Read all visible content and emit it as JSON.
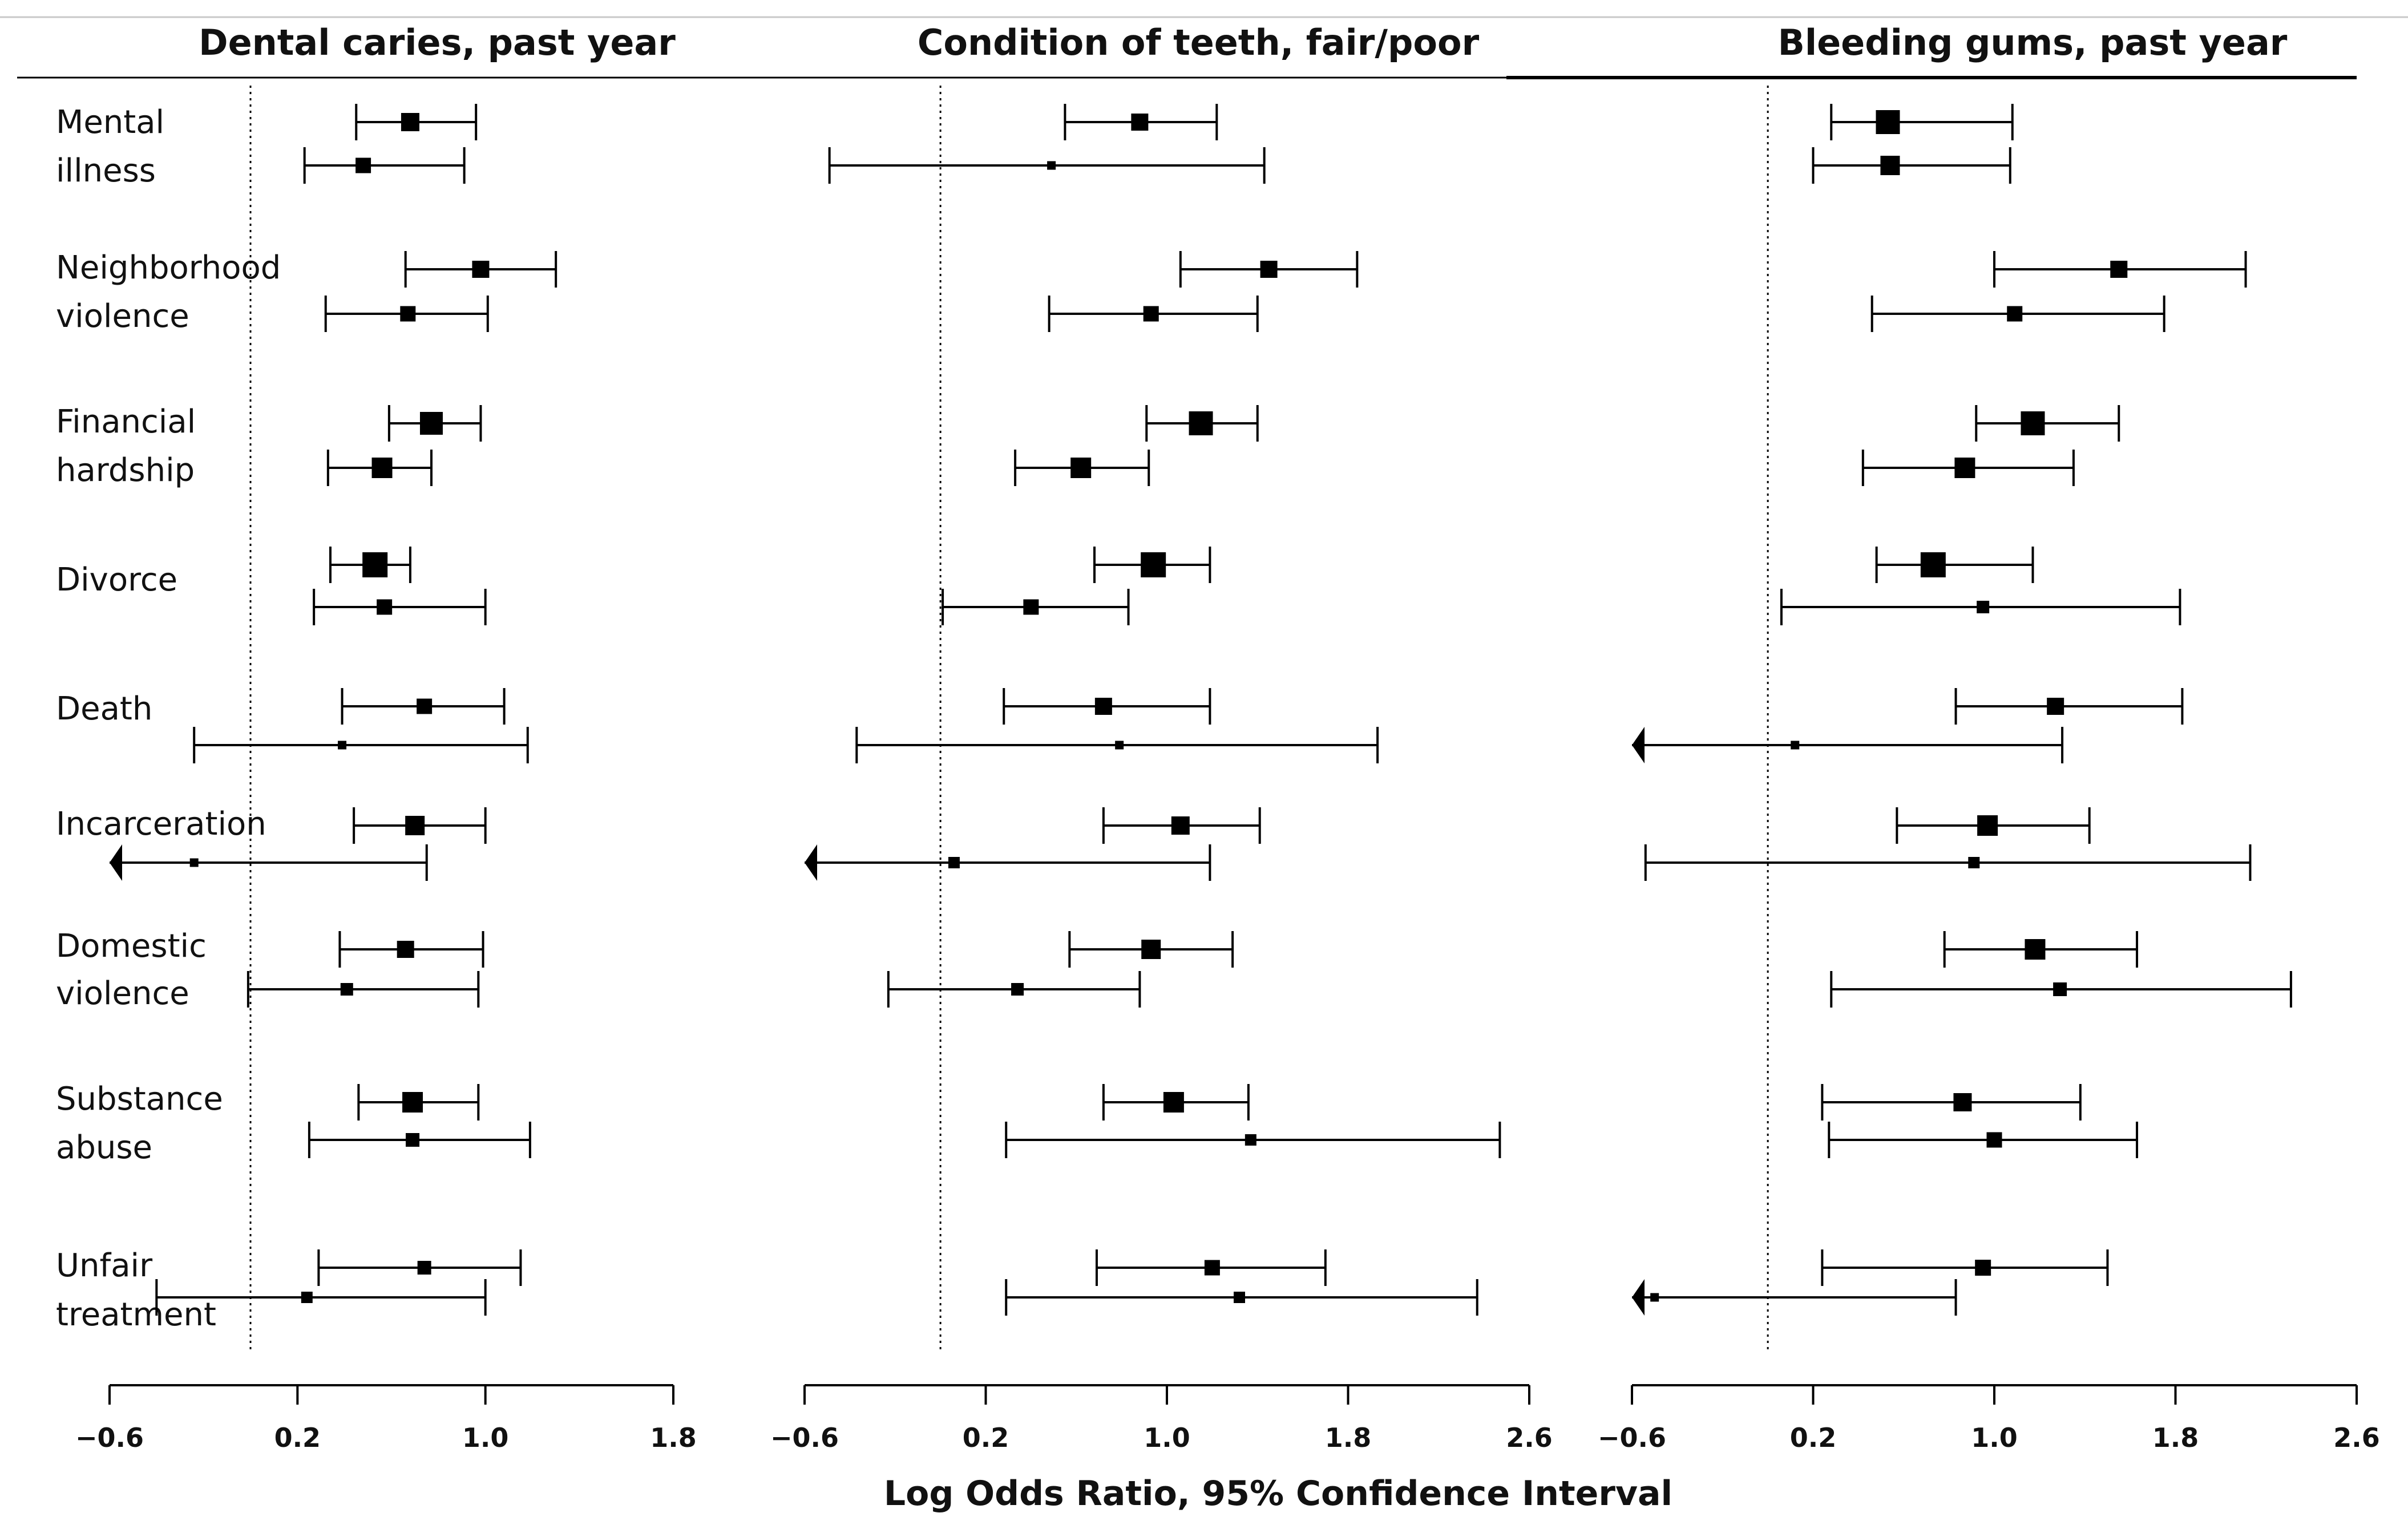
{
  "chart_data": {
    "type": "forest",
    "xlabel": "Log Odds Ratio, 95% Confidence Interval",
    "reference_line": 0,
    "rows": [
      {
        "label_lines": [
          "Mental",
          "illness"
        ]
      },
      {
        "label_lines": [
          "Neighborhood",
          "violence"
        ]
      },
      {
        "label_lines": [
          "Financial",
          "hardship"
        ]
      },
      {
        "label_lines": [
          "Divorce"
        ]
      },
      {
        "label_lines": [
          "Death"
        ]
      },
      {
        "label_lines": [
          "Incarceration"
        ]
      },
      {
        "label_lines": [
          "Domestic",
          "violence"
        ]
      },
      {
        "label_lines": [
          "Substance",
          "abuse"
        ]
      },
      {
        "label_lines": [
          "Unfair",
          "treatment"
        ]
      }
    ],
    "panels": [
      {
        "title": "Dental caries, past year",
        "xlim": [
          -0.6,
          1.8
        ],
        "ticks": [
          -0.6,
          0.2,
          1.0,
          1.8
        ],
        "tick_labels": [
          "−0.6",
          "0.2",
          "1.0",
          "1.8"
        ],
        "estimates": [
          {
            "row": 0,
            "sub": 0,
            "est": 0.68,
            "lo": 0.45,
            "hi": 0.96,
            "size": 32
          },
          {
            "row": 0,
            "sub": 1,
            "est": 0.48,
            "lo": 0.23,
            "hi": 0.91,
            "size": 27
          },
          {
            "row": 1,
            "sub": 0,
            "est": 0.98,
            "lo": 0.66,
            "hi": 1.3,
            "size": 30
          },
          {
            "row": 1,
            "sub": 1,
            "est": 0.67,
            "lo": 0.32,
            "hi": 1.01,
            "size": 27
          },
          {
            "row": 2,
            "sub": 0,
            "est": 0.77,
            "lo": 0.59,
            "hi": 0.98,
            "size": 40
          },
          {
            "row": 2,
            "sub": 1,
            "est": 0.56,
            "lo": 0.33,
            "hi": 0.77,
            "size": 36
          },
          {
            "row": 3,
            "sub": 0,
            "est": 0.53,
            "lo": 0.34,
            "hi": 0.68,
            "size": 44
          },
          {
            "row": 3,
            "sub": 1,
            "est": 0.57,
            "lo": 0.27,
            "hi": 1.0,
            "size": 27
          },
          {
            "row": 4,
            "sub": 0,
            "est": 0.74,
            "lo": 0.39,
            "hi": 1.08,
            "size": 27
          },
          {
            "row": 4,
            "sub": 1,
            "est": 0.39,
            "lo": -0.24,
            "hi": 1.18,
            "size": 15
          },
          {
            "row": 5,
            "sub": 0,
            "est": 0.7,
            "lo": 0.44,
            "hi": 1.0,
            "size": 34
          },
          {
            "row": 5,
            "sub": 1,
            "est": -0.24,
            "lo": -0.6,
            "hi": 0.75,
            "size": 15,
            "lo_arrow": true
          },
          {
            "row": 6,
            "sub": 0,
            "est": 0.66,
            "lo": 0.38,
            "hi": 0.99,
            "size": 30
          },
          {
            "row": 6,
            "sub": 1,
            "est": 0.41,
            "lo": -0.01,
            "hi": 0.97,
            "size": 22
          },
          {
            "row": 7,
            "sub": 0,
            "est": 0.69,
            "lo": 0.46,
            "hi": 0.97,
            "size": 36
          },
          {
            "row": 7,
            "sub": 1,
            "est": 0.69,
            "lo": 0.25,
            "hi": 1.19,
            "size": 24
          },
          {
            "row": 8,
            "sub": 0,
            "est": 0.74,
            "lo": 0.29,
            "hi": 1.15,
            "size": 24
          },
          {
            "row": 8,
            "sub": 1,
            "est": 0.24,
            "lo": -0.4,
            "hi": 1.0,
            "size": 20
          }
        ]
      },
      {
        "title": "Condition of teeth, fair/poor",
        "xlim": [
          -0.6,
          2.6
        ],
        "ticks": [
          -0.6,
          0.2,
          1.0,
          1.8,
          2.6
        ],
        "tick_labels": [
          "−0.6",
          "0.2",
          "1.0",
          "1.8",
          "2.6"
        ],
        "estimates": [
          {
            "row": 0,
            "sub": 0,
            "est": 0.88,
            "lo": 0.55,
            "hi": 1.22,
            "size": 30
          },
          {
            "row": 0,
            "sub": 1,
            "est": 0.49,
            "lo": -0.49,
            "hi": 1.43,
            "size": 15
          },
          {
            "row": 1,
            "sub": 0,
            "est": 1.45,
            "lo": 1.06,
            "hi": 1.84,
            "size": 30
          },
          {
            "row": 1,
            "sub": 1,
            "est": 0.93,
            "lo": 0.48,
            "hi": 1.4,
            "size": 27
          },
          {
            "row": 2,
            "sub": 0,
            "est": 1.15,
            "lo": 0.91,
            "hi": 1.4,
            "size": 42
          },
          {
            "row": 2,
            "sub": 1,
            "est": 0.62,
            "lo": 0.33,
            "hi": 0.92,
            "size": 36
          },
          {
            "row": 3,
            "sub": 0,
            "est": 0.94,
            "lo": 0.68,
            "hi": 1.19,
            "size": 44
          },
          {
            "row": 3,
            "sub": 1,
            "est": 0.4,
            "lo": 0.01,
            "hi": 0.83,
            "size": 27
          },
          {
            "row": 4,
            "sub": 0,
            "est": 0.72,
            "lo": 0.28,
            "hi": 1.19,
            "size": 30
          },
          {
            "row": 4,
            "sub": 1,
            "est": 0.79,
            "lo": -0.37,
            "hi": 1.93,
            "size": 15
          },
          {
            "row": 5,
            "sub": 0,
            "est": 1.06,
            "lo": 0.72,
            "hi": 1.41,
            "size": 32
          },
          {
            "row": 5,
            "sub": 1,
            "est": 0.06,
            "lo": -0.6,
            "hi": 1.19,
            "size": 20,
            "lo_arrow": true
          },
          {
            "row": 6,
            "sub": 0,
            "est": 0.93,
            "lo": 0.57,
            "hi": 1.29,
            "size": 34
          },
          {
            "row": 6,
            "sub": 1,
            "est": 0.34,
            "lo": -0.23,
            "hi": 0.88,
            "size": 22
          },
          {
            "row": 7,
            "sub": 0,
            "est": 1.03,
            "lo": 0.72,
            "hi": 1.36,
            "size": 36
          },
          {
            "row": 7,
            "sub": 1,
            "est": 1.37,
            "lo": 0.29,
            "hi": 2.47,
            "size": 20
          },
          {
            "row": 8,
            "sub": 0,
            "est": 1.2,
            "lo": 0.69,
            "hi": 1.7,
            "size": 27
          },
          {
            "row": 8,
            "sub": 1,
            "est": 1.32,
            "lo": 0.29,
            "hi": 2.37,
            "size": 20
          }
        ]
      },
      {
        "title": "Bleeding gums, past year",
        "xlim": [
          -0.6,
          2.6
        ],
        "ticks": [
          -0.6,
          0.2,
          1.0,
          1.8,
          2.6
        ],
        "tick_labels": [
          "−0.6",
          "0.2",
          "1.0",
          "1.8",
          "2.6"
        ],
        "estimates": [
          {
            "row": 0,
            "sub": 0,
            "est": 0.53,
            "lo": 0.28,
            "hi": 1.08,
            "size": 42
          },
          {
            "row": 0,
            "sub": 1,
            "est": 0.54,
            "lo": 0.2,
            "hi": 1.07,
            "size": 34
          },
          {
            "row": 1,
            "sub": 0,
            "est": 1.55,
            "lo": 1.0,
            "hi": 2.11,
            "size": 30
          },
          {
            "row": 1,
            "sub": 1,
            "est": 1.09,
            "lo": 0.46,
            "hi": 1.75,
            "size": 27
          },
          {
            "row": 2,
            "sub": 0,
            "est": 1.17,
            "lo": 0.92,
            "hi": 1.55,
            "size": 42
          },
          {
            "row": 2,
            "sub": 1,
            "est": 0.87,
            "lo": 0.42,
            "hi": 1.35,
            "size": 36
          },
          {
            "row": 3,
            "sub": 0,
            "est": 0.73,
            "lo": 0.48,
            "hi": 1.17,
            "size": 44
          },
          {
            "row": 3,
            "sub": 1,
            "est": 0.95,
            "lo": 0.06,
            "hi": 1.82,
            "size": 22
          },
          {
            "row": 4,
            "sub": 0,
            "est": 1.27,
            "lo": 0.83,
            "hi": 1.83,
            "size": 30
          },
          {
            "row": 4,
            "sub": 1,
            "est": 0.12,
            "lo": -0.6,
            "hi": 1.3,
            "size": 15,
            "lo_arrow": true
          },
          {
            "row": 5,
            "sub": 0,
            "est": 0.97,
            "lo": 0.57,
            "hi": 1.42,
            "size": 36
          },
          {
            "row": 5,
            "sub": 1,
            "est": 0.91,
            "lo": -0.54,
            "hi": 2.13,
            "size": 20
          },
          {
            "row": 6,
            "sub": 0,
            "est": 1.18,
            "lo": 0.78,
            "hi": 1.63,
            "size": 36
          },
          {
            "row": 6,
            "sub": 1,
            "est": 1.29,
            "lo": 0.28,
            "hi": 2.31,
            "size": 24
          },
          {
            "row": 7,
            "sub": 0,
            "est": 0.86,
            "lo": 0.24,
            "hi": 1.38,
            "size": 32
          },
          {
            "row": 7,
            "sub": 1,
            "est": 1.0,
            "lo": 0.27,
            "hi": 1.63,
            "size": 27
          },
          {
            "row": 8,
            "sub": 0,
            "est": 0.95,
            "lo": 0.24,
            "hi": 1.5,
            "size": 28
          },
          {
            "row": 8,
            "sub": 1,
            "est": -0.5,
            "lo": -0.6,
            "hi": 0.83,
            "size": 15,
            "lo_arrow": true
          }
        ]
      }
    ]
  }
}
